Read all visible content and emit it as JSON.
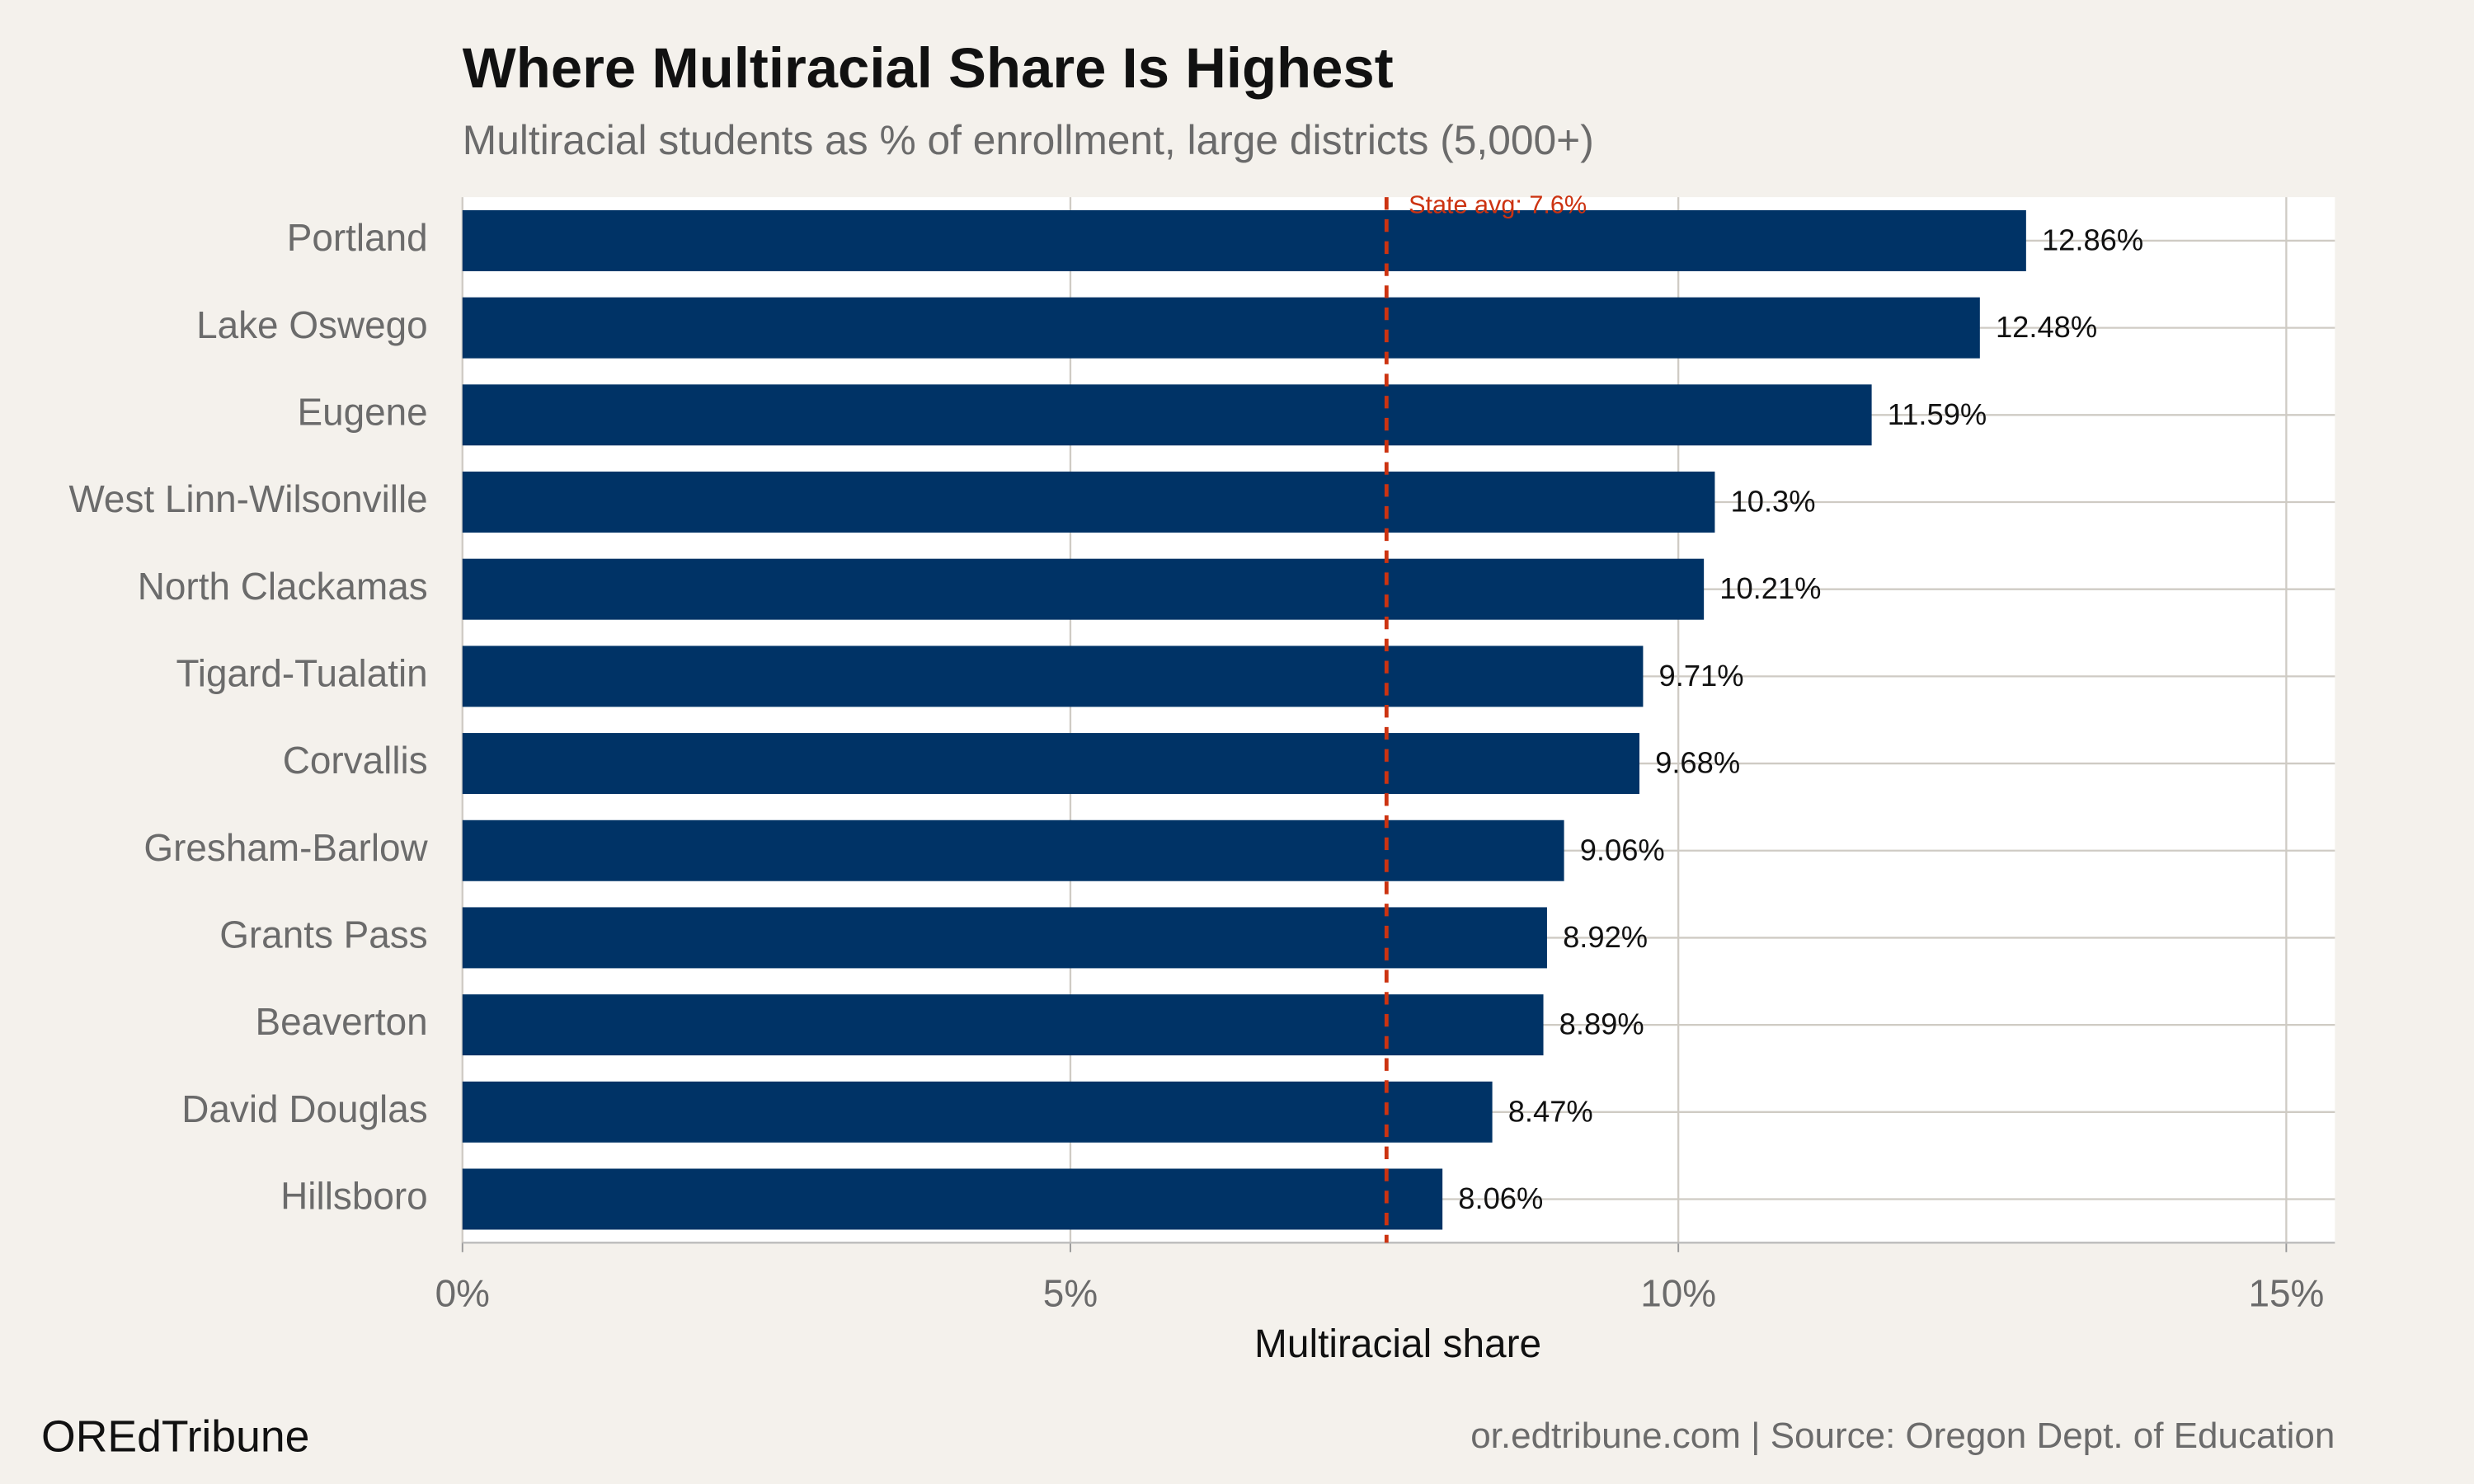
{
  "chart_data": {
    "type": "barh",
    "title": "Where Multiracial Share Is Highest",
    "subtitle": "Multiracial students as % of enrollment, large districts (5,000+)",
    "x_label": "Multiracial share",
    "categories": [
      "Portland",
      "Lake Oswego",
      "Eugene",
      "West Linn-Wilsonville",
      "North Clackamas",
      "Tigard-Tualatin",
      "Corvallis",
      "Gresham-Barlow",
      "Grants Pass",
      "Beaverton",
      "David Douglas",
      "Hillsboro"
    ],
    "values": [
      12.86,
      12.48,
      11.59,
      10.3,
      10.21,
      9.71,
      9.68,
      9.06,
      8.92,
      8.89,
      8.47,
      8.06
    ],
    "value_labels": [
      "12.86%",
      "12.48%",
      "11.59%",
      "10.3%",
      "10.21%",
      "9.71%",
      "9.68%",
      "9.06%",
      "8.92%",
      "8.89%",
      "8.47%",
      "8.06%"
    ],
    "color": "#003366",
    "xlim": [
      0,
      15.4
    ],
    "xticks": [
      {
        "value": 0,
        "label": "0%"
      },
      {
        "value": 5,
        "label": "5%"
      },
      {
        "value": 10,
        "label": "10%"
      },
      {
        "value": 15,
        "label": "15%"
      }
    ],
    "grid": true,
    "reference_line": {
      "value": 7.6,
      "label": "State avg: 7.6%",
      "color": "#cc3311"
    },
    "brand": "OREdTribune",
    "source": "or.edtribune.com | Source: Oregon Dept. of Education"
  }
}
